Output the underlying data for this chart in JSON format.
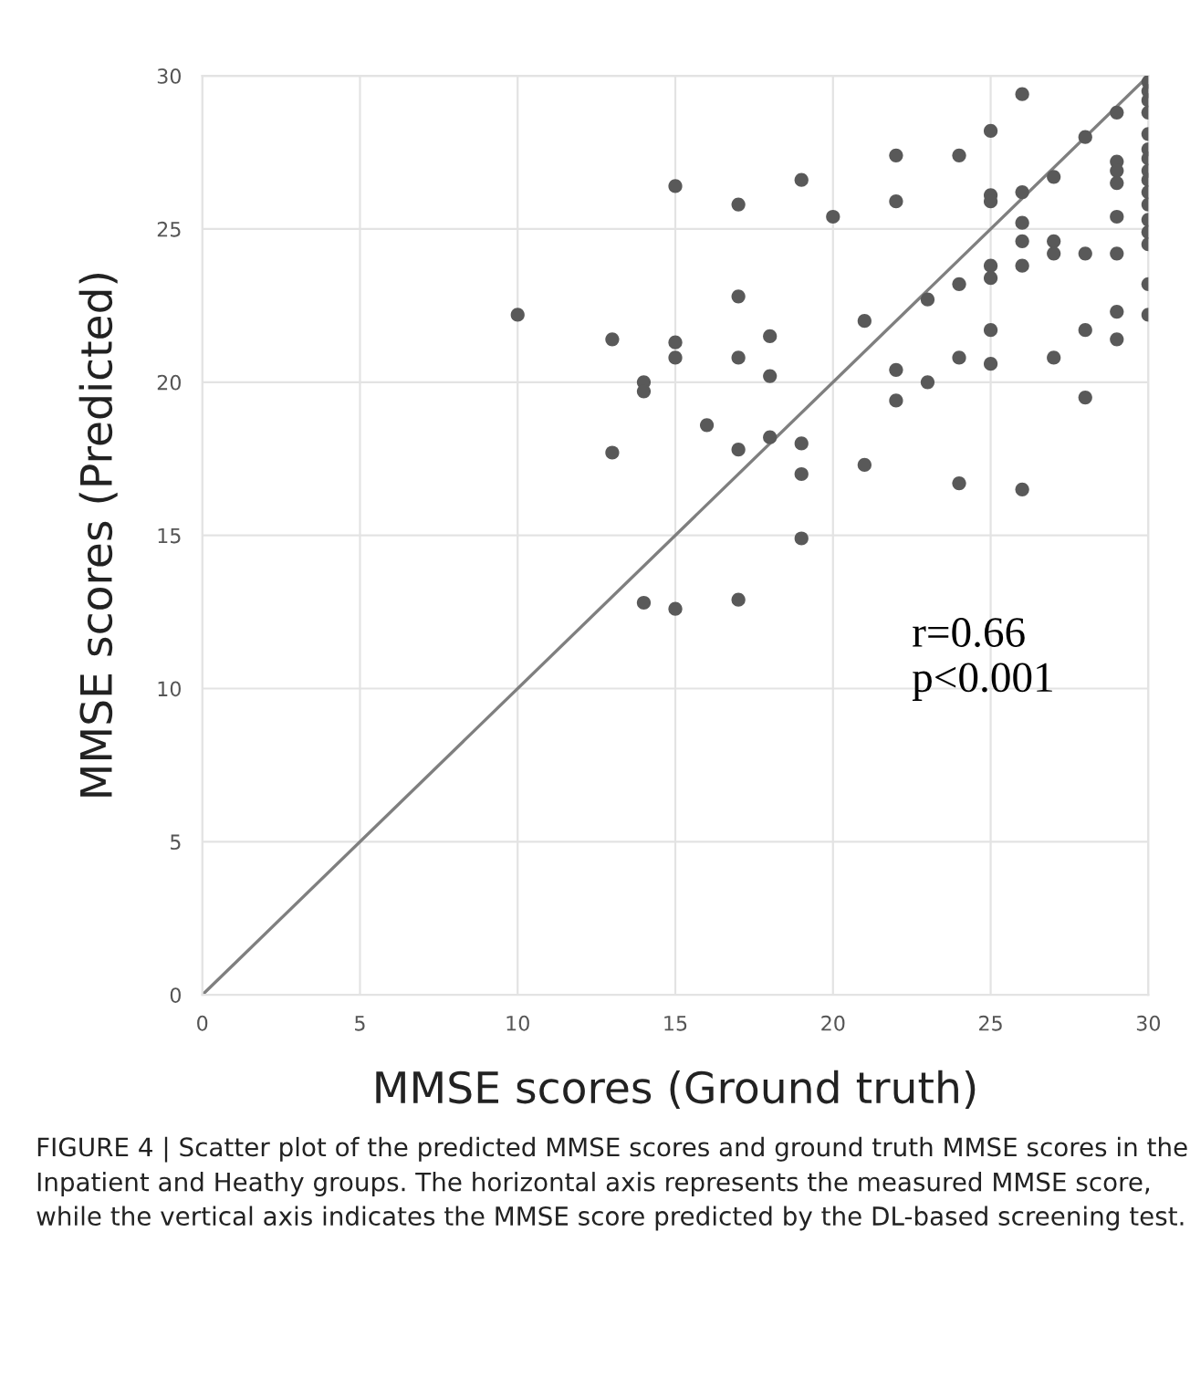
{
  "chart_data": {
    "type": "scatter",
    "xlabel": "MMSE scores (Ground truth)",
    "ylabel": "MMSE scores (Predicted)",
    "xlim": [
      0,
      30
    ],
    "ylim": [
      0,
      30
    ],
    "xticks": [
      0,
      5,
      10,
      15,
      20,
      25,
      30
    ],
    "yticks": [
      0,
      5,
      10,
      15,
      20,
      25,
      30
    ],
    "grid": true,
    "marker": "circle",
    "series": [
      {
        "color": "#595959",
        "x": [
          10,
          13,
          13,
          14,
          14,
          14,
          15,
          15,
          15,
          15,
          16,
          17,
          17,
          17,
          17,
          17,
          18,
          18,
          18,
          19,
          19,
          19,
          19,
          20,
          21,
          21,
          22,
          22,
          22,
          22,
          23,
          23,
          24,
          24,
          24,
          24,
          25,
          25,
          25,
          25,
          25,
          25,
          25,
          26,
          26,
          26,
          26,
          26,
          26,
          27,
          27,
          27,
          27,
          28,
          28,
          28,
          28,
          29,
          29,
          29,
          29,
          29,
          29,
          29,
          29,
          30,
          30,
          30,
          30,
          30,
          30,
          30,
          30,
          30,
          30,
          30,
          30,
          30,
          30,
          30,
          30
        ],
        "values": [
          22.2,
          21.4,
          17.7,
          20.0,
          19.7,
          12.8,
          26.4,
          21.3,
          20.8,
          12.6,
          18.6,
          25.8,
          22.8,
          20.8,
          17.8,
          12.9,
          21.5,
          20.2,
          18.2,
          26.6,
          18.0,
          17.0,
          14.9,
          25.4,
          22.0,
          17.3,
          27.4,
          25.9,
          20.4,
          19.4,
          22.7,
          20.0,
          27.4,
          23.2,
          20.8,
          16.7,
          28.2,
          26.1,
          25.9,
          23.8,
          23.4,
          21.7,
          20.6,
          29.4,
          26.2,
          25.2,
          24.6,
          23.8,
          16.5,
          26.7,
          24.6,
          24.2,
          20.8,
          28.0,
          24.2,
          21.7,
          19.5,
          28.8,
          27.2,
          26.9,
          26.5,
          25.4,
          24.2,
          22.3,
          21.4,
          29.8,
          29.5,
          29.2,
          28.8,
          28.1,
          27.6,
          27.3,
          26.9,
          26.6,
          26.2,
          25.8,
          25.3,
          24.9,
          24.5,
          23.2,
          22.2
        ]
      },
      {
        "type": "line",
        "color": "#7f7f7f",
        "x": [
          0,
          30
        ],
        "values": [
          0,
          30
        ],
        "marker": "none",
        "line_style": "solid"
      }
    ],
    "annotations": [
      "r=0.66\np<0.001",
      "FIGURE 4 | Scatter plot of the predicted MMSE scores and ground truth MMSE scores in the Inpatient and Heathy groups. The horizontal axis represents the measured MMSE score, while the vertical axis indicates the MMSE score predicted by the DL-based screening test."
    ]
  }
}
